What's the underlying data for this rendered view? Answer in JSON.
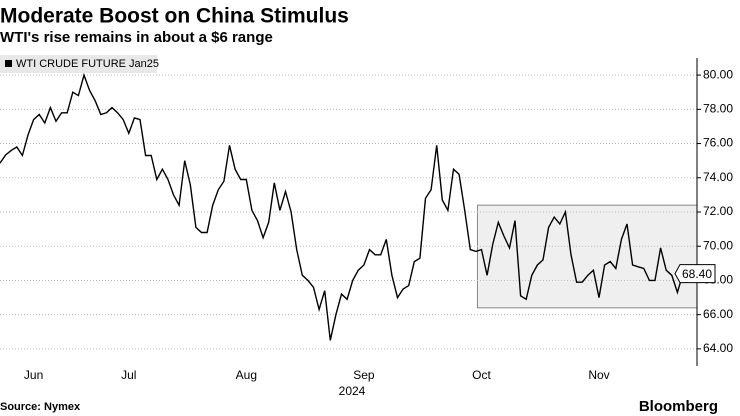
{
  "chart_data": {
    "type": "line",
    "title": "Moderate Boost on China Stimulus",
    "subtitle": "WTI's rise remains in about a $6 range",
    "source": "Source: Nymex",
    "brand": "Bloomberg",
    "xlabel": "2024",
    "categories": [
      null,
      null,
      null,
      null,
      null,
      null,
      "Jun",
      null,
      null,
      null,
      null,
      null,
      null,
      null,
      null,
      null,
      null,
      null,
      null,
      null,
      null,
      null,
      null,
      "Jul",
      null,
      null,
      null,
      null,
      null,
      null,
      null,
      null,
      null,
      null,
      null,
      null,
      null,
      null,
      null,
      null,
      null,
      null,
      null,
      null,
      "Aug",
      null,
      null,
      null,
      null,
      null,
      null,
      null,
      null,
      null,
      null,
      null,
      null,
      null,
      null,
      null,
      null,
      null,
      null,
      null,
      null,
      "Sep",
      null,
      null,
      null,
      null,
      null,
      null,
      null,
      null,
      null,
      null,
      null,
      null,
      null,
      null,
      null,
      null,
      null,
      null,
      null,
      null,
      "Oct",
      null,
      null,
      null,
      null,
      null,
      null,
      null,
      null,
      null,
      null,
      null,
      null,
      null,
      null,
      null,
      null,
      null,
      null,
      null,
      null,
      "Nov",
      null,
      null,
      null,
      null,
      null,
      null,
      null,
      null,
      null,
      null,
      null,
      null,
      null,
      null,
      null
    ],
    "series": [
      {
        "name": "WTI CRUDE FUTURE  Jan25",
        "color": "#000000",
        "values": [
          74.86,
          75.33,
          75.6,
          75.8,
          75.3,
          76.5,
          77.4,
          77.7,
          77.2,
          78.1,
          77.3,
          77.8,
          77.8,
          79.0,
          78.8,
          80.0,
          79.1,
          78.5,
          77.7,
          77.8,
          78.1,
          77.8,
          77.4,
          76.6,
          77.5,
          77.4,
          75.3,
          75.3,
          73.9,
          74.5,
          73.9,
          73.0,
          72.4,
          75.0,
          73.6,
          71.1,
          70.8,
          70.8,
          72.4,
          73.3,
          73.8,
          75.9,
          74.5,
          73.9,
          73.9,
          72.1,
          71.5,
          70.5,
          71.4,
          73.7,
          72.1,
          73.2,
          72.0,
          69.8,
          68.3,
          68.0,
          67.6,
          66.3,
          67.4,
          64.5,
          66.0,
          67.2,
          66.9,
          68.0,
          68.6,
          68.9,
          69.8,
          69.5,
          69.5,
          70.4,
          68.3,
          67.0,
          67.5,
          67.7,
          69.1,
          69.3,
          72.8,
          73.3,
          75.9,
          72.7,
          72.1,
          74.5,
          74.2,
          72.1,
          69.8,
          69.7,
          69.8,
          68.3,
          70.1,
          71.4,
          70.6,
          69.9,
          71.5,
          67.1,
          66.9,
          68.3,
          68.9,
          69.2,
          71.1,
          71.7,
          71.3,
          72.0,
          69.5,
          67.9,
          67.9,
          68.3,
          68.6,
          67.0,
          68.9,
          69.1,
          68.7,
          70.4,
          71.3,
          68.9,
          68.8,
          68.7,
          68.0,
          68.0,
          69.9,
          68.6,
          68.3,
          67.3,
          68.4
        ],
        "value_labels": [
          null,
          null,
          null,
          null,
          null,
          null,
          null,
          null,
          null,
          null,
          null,
          null,
          null,
          null,
          null,
          null,
          null,
          null,
          null,
          null,
          null,
          null,
          null,
          null,
          null,
          null,
          null,
          null,
          null,
          null,
          null,
          null,
          null,
          null,
          null,
          null,
          null,
          null,
          null,
          null,
          null,
          null,
          null,
          null,
          null,
          null,
          null,
          null,
          null,
          null,
          null,
          null,
          null,
          null,
          null,
          null,
          null,
          null,
          null,
          null,
          null,
          null,
          null,
          null,
          null,
          null,
          null,
          null,
          null,
          null,
          null,
          null,
          null,
          null,
          null,
          null,
          null,
          null,
          null,
          null,
          null,
          null,
          null,
          null,
          null,
          null,
          null,
          null,
          null,
          null,
          null,
          null,
          null,
          null,
          null,
          null,
          null,
          null,
          null,
          null,
          null,
          null,
          null,
          null,
          null,
          null,
          null,
          null,
          null,
          null,
          null,
          null,
          null,
          null,
          null,
          null,
          null,
          null,
          null,
          null,
          null,
          null,
          "68.40"
        ]
      }
    ],
    "range_box": {
      "low": 66.4,
      "high": 72.4
    },
    "ylim": [
      63,
      81
    ],
    "yticks": [
      {
        "value": 64,
        "label": "64.00"
      },
      {
        "value": 66,
        "label": "66.00"
      },
      {
        "value": 68,
        "label": "68.00"
      },
      {
        "value": 70,
        "label": "70.00"
      },
      {
        "value": 72,
        "label": "72.00"
      },
      {
        "value": 74,
        "label": "74.00"
      },
      {
        "value": 76,
        "label": "76.00"
      },
      {
        "value": 78,
        "label": "78.00"
      },
      {
        "value": 80,
        "label": "80.00"
      }
    ],
    "grid": true
  }
}
